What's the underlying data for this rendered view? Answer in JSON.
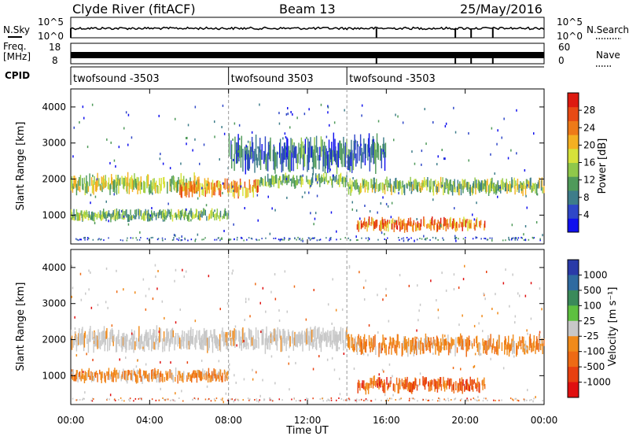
{
  "header": {
    "title": "Clyde River (fitACF)",
    "beam": "Beam 13",
    "date": "25/May/2016"
  },
  "side_labels": {
    "nsky": "N.Sky",
    "nsky_ticks": [
      "10^5",
      "10^0"
    ],
    "nsearch": "N.Search",
    "freq": "Freq.",
    "freq_unit": "[MHz]",
    "freq_ticks": [
      "18",
      "8"
    ],
    "nave": "Nave",
    "nave_ticks": [
      "60",
      "0"
    ],
    "cpid": "CPID",
    "nsearch_ticks": [
      "10^5",
      "10^0"
    ]
  },
  "cpid_segments": [
    {
      "label": "twofsound -3503",
      "start_hour": 0,
      "end_hour": 8
    },
    {
      "label": "twofsound 3503",
      "start_hour": 8,
      "end_hour": 14
    },
    {
      "label": "twofsound -3503",
      "start_hour": 14,
      "end_hour": 24
    }
  ],
  "chart_data": [
    {
      "type": "heatmap",
      "name": "power",
      "ylabel": "Slant Range [km]",
      "xlim": [
        0,
        24
      ],
      "ylim": [
        200,
        4500
      ],
      "yticks": [
        1000,
        2000,
        3000,
        4000
      ],
      "colorbar": {
        "label": "Power [dB]",
        "ticks": [
          "4",
          "8",
          "12",
          "16",
          "20",
          "24",
          "28"
        ],
        "colors": [
          "#1010ee",
          "#2f47c8",
          "#3e7d8a",
          "#4f9a5a",
          "#8fc84a",
          "#d6e23a",
          "#f4b022",
          "#ee7a18",
          "#e84a14",
          "#dd1a10"
        ]
      },
      "bands": [
        {
          "start_hour": 0.0,
          "end_hour": 6.5,
          "center_km": 1850,
          "width_km": 500,
          "power_db": 15
        },
        {
          "start_hour": 5.5,
          "end_hour": 9.5,
          "center_km": 1750,
          "width_km": 450,
          "power_db": 22
        },
        {
          "start_hour": 9.5,
          "end_hour": 14.0,
          "center_km": 1950,
          "width_km": 350,
          "power_db": 12
        },
        {
          "start_hour": 14.0,
          "end_hour": 24.0,
          "center_km": 1800,
          "width_km": 400,
          "power_db": 13
        },
        {
          "start_hour": 0.0,
          "end_hour": 8.0,
          "center_km": 1000,
          "width_km": 300,
          "power_db": 12
        },
        {
          "start_hour": 14.5,
          "end_hour": 21.0,
          "center_km": 750,
          "width_km": 350,
          "power_db": 24
        },
        {
          "start_hour": 8.0,
          "end_hour": 16.0,
          "center_km": 2700,
          "width_km": 900,
          "power_db": 6
        }
      ]
    },
    {
      "type": "heatmap",
      "name": "velocity",
      "ylabel": "Slant Range [km]",
      "xlabel": "Time UT",
      "xlim": [
        0,
        24
      ],
      "ylim": [
        200,
        4500
      ],
      "yticks": [
        1000,
        2000,
        3000,
        4000
      ],
      "xticks": [
        "00:00",
        "04:00",
        "08:00",
        "12:00",
        "16:00",
        "20:00",
        "00:00"
      ],
      "colorbar": {
        "label": "Velocity [m s⁻¹]",
        "ticks": [
          "1000",
          "500",
          "100",
          "25",
          "-25",
          "-100",
          "-500",
          "-1000"
        ],
        "colors": [
          "#2a3aa8",
          "#2f6aa0",
          "#3a8a5a",
          "#5ec040",
          "#c8c8c8",
          "#f08a1a",
          "#ee6a14",
          "#e84010",
          "#e01010"
        ]
      },
      "bands": [
        {
          "start_hour": 0.0,
          "end_hour": 14.0,
          "center_km": 2000,
          "width_km": 600,
          "velocity": 0
        },
        {
          "start_hour": 14.0,
          "end_hour": 24.0,
          "center_km": 1850,
          "width_km": 500,
          "velocity": -150
        },
        {
          "start_hour": 0.0,
          "end_hour": 8.0,
          "center_km": 1000,
          "width_km": 350,
          "velocity": -150
        },
        {
          "start_hour": 14.5,
          "end_hour": 21.0,
          "center_km": 750,
          "width_km": 400,
          "velocity": -400
        }
      ]
    }
  ]
}
